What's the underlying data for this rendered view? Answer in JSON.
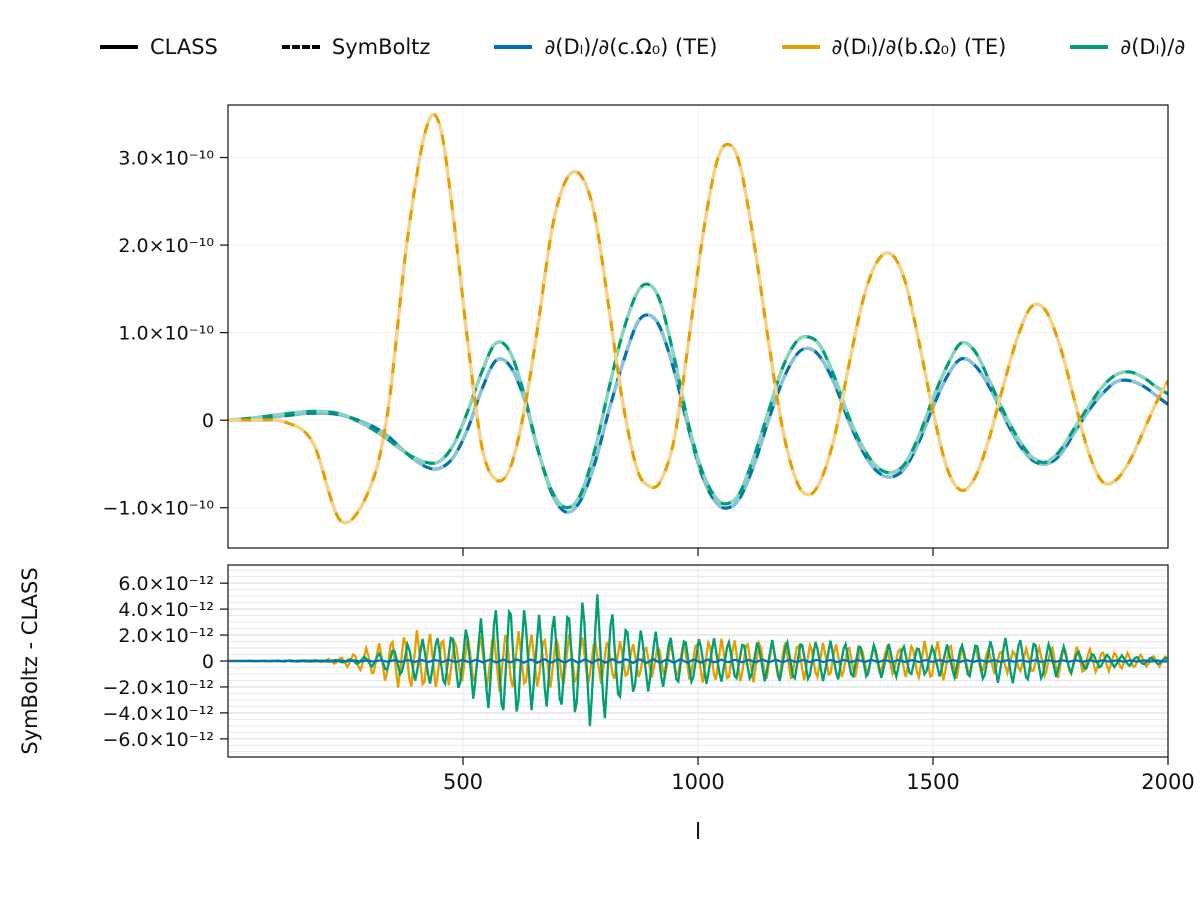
{
  "legend": {
    "items": [
      {
        "label": "CLASS",
        "color": "#000000",
        "style": "solid"
      },
      {
        "label": "SymBoltz",
        "color": "#000000",
        "style": "dashed"
      },
      {
        "label": "∂(Dₗ)/∂(c.Ω₀) (TE)",
        "color": "#0072B2",
        "style": "solid"
      },
      {
        "label": "∂(Dₗ)/∂(b.Ω₀) (TE)",
        "color": "#E69F00",
        "style": "solid"
      },
      {
        "label": "∂(Dₗ)/∂",
        "color": "#009E73",
        "style": "solid"
      }
    ]
  },
  "axes": {
    "top": {
      "yticks": [
        {
          "v": 3,
          "label": "3.0×10⁻¹⁰"
        },
        {
          "v": 2,
          "label": "2.0×10⁻¹⁰"
        },
        {
          "v": 1,
          "label": "1.0×10⁻¹⁰"
        },
        {
          "v": 0,
          "label": "0"
        },
        {
          "v": -1,
          "label": "−1.0×10⁻¹⁰"
        }
      ],
      "xticks_unlabeled": [
        500,
        1000,
        1500
      ]
    },
    "bottom": {
      "ylabel": "SymBoltz - CLASS",
      "xlabel": "l",
      "yticks": [
        {
          "v": 6,
          "label": "6.0×10⁻¹²"
        },
        {
          "v": 4,
          "label": "4.0×10⁻¹²"
        },
        {
          "v": 2,
          "label": "2.0×10⁻¹²"
        },
        {
          "v": 0,
          "label": "0"
        },
        {
          "v": -2,
          "label": "−2.0×10⁻¹²"
        },
        {
          "v": -4,
          "label": "−4.0×10⁻¹²"
        },
        {
          "v": -6,
          "label": "−6.0×10⁻¹²"
        }
      ],
      "xticks": [
        {
          "v": 500,
          "label": "500"
        },
        {
          "v": 1000,
          "label": "1000"
        },
        {
          "v": 1500,
          "label": "1500"
        },
        {
          "v": 2000,
          "label": "2000"
        }
      ]
    }
  },
  "chart_data": [
    {
      "type": "line",
      "panel": "top",
      "title": "",
      "xlabel": "",
      "ylabel": "",
      "xlim": [
        0,
        2000
      ],
      "y_unit": 1e-10,
      "ylim_scaled": [
        -1.46,
        3.6
      ],
      "overlay_styles": {
        "solid": "CLASS",
        "dashed": "SymBoltz"
      },
      "x": [
        2,
        60,
        120,
        180,
        240,
        300,
        340,
        380,
        420,
        450,
        480,
        510,
        540,
        570,
        600,
        630,
        660,
        690,
        720,
        750,
        780,
        810,
        840,
        870,
        895,
        920,
        950,
        980,
        1010,
        1040,
        1065,
        1090,
        1120,
        1150,
        1180,
        1210,
        1235,
        1260,
        1290,
        1320,
        1350,
        1380,
        1410,
        1440,
        1470,
        1500,
        1530,
        1560,
        1590,
        1620,
        1650,
        1680,
        1710,
        1740,
        1770,
        1800,
        1830,
        1860,
        1890,
        1920,
        1950,
        1975,
        2000
      ],
      "series": [
        {
          "name": "∂(Dₗ)/∂(c.Ω₀) (TE)",
          "color": "#0072B2",
          "values": [
            0,
            0.02,
            0.05,
            0.08,
            0.06,
            -0.05,
            -0.18,
            -0.38,
            -0.53,
            -0.55,
            -0.42,
            -0.1,
            0.35,
            0.68,
            0.62,
            0.25,
            -0.35,
            -0.85,
            -1.05,
            -0.92,
            -0.5,
            0.1,
            0.65,
            1.1,
            1.2,
            1.05,
            0.55,
            -0.1,
            -0.65,
            -0.95,
            -1.0,
            -0.88,
            -0.5,
            0.0,
            0.45,
            0.75,
            0.82,
            0.72,
            0.42,
            0.0,
            -0.35,
            -0.58,
            -0.65,
            -0.55,
            -0.25,
            0.15,
            0.5,
            0.7,
            0.62,
            0.38,
            0.05,
            -0.25,
            -0.45,
            -0.5,
            -0.4,
            -0.15,
            0.1,
            0.3,
            0.44,
            0.45,
            0.38,
            0.28,
            0.18
          ]
        },
        {
          "name": "∂(Dₗ)/∂(b.Ω₀) (TE)",
          "color": "#E69F00",
          "values": [
            0,
            0,
            -0.02,
            -0.25,
            -1.15,
            -0.8,
            0.1,
            2.0,
            3.3,
            3.38,
            2.3,
            0.9,
            -0.3,
            -0.68,
            -0.55,
            0.1,
            1.1,
            2.2,
            2.75,
            2.8,
            2.35,
            1.3,
            0.2,
            -0.55,
            -0.75,
            -0.7,
            -0.2,
            0.9,
            2.1,
            2.95,
            3.15,
            2.9,
            2.0,
            0.9,
            -0.1,
            -0.7,
            -0.85,
            -0.7,
            -0.2,
            0.6,
            1.35,
            1.8,
            1.9,
            1.6,
            0.9,
            0.1,
            -0.55,
            -0.8,
            -0.65,
            -0.2,
            0.4,
            0.95,
            1.3,
            1.25,
            0.85,
            0.25,
            -0.35,
            -0.7,
            -0.68,
            -0.45,
            -0.1,
            0.2,
            0.45
          ]
        },
        {
          "name": "∂(Dₗ)/∂",
          "color": "#009E73",
          "values": [
            0,
            0.03,
            0.07,
            0.1,
            0.07,
            -0.08,
            -0.22,
            -0.38,
            -0.48,
            -0.47,
            -0.28,
            0.1,
            0.55,
            0.88,
            0.78,
            0.3,
            -0.35,
            -0.82,
            -1.0,
            -0.85,
            -0.35,
            0.35,
            1.0,
            1.45,
            1.55,
            1.35,
            0.7,
            -0.05,
            -0.6,
            -0.9,
            -0.95,
            -0.82,
            -0.4,
            0.1,
            0.6,
            0.9,
            0.95,
            0.85,
            0.5,
            0.05,
            -0.3,
            -0.53,
            -0.6,
            -0.5,
            -0.18,
            0.25,
            0.62,
            0.88,
            0.78,
            0.45,
            0.1,
            -0.2,
            -0.42,
            -0.48,
            -0.35,
            -0.1,
            0.15,
            0.38,
            0.52,
            0.55,
            0.48,
            0.38,
            0.3
          ]
        }
      ]
    },
    {
      "type": "line",
      "panel": "bottom",
      "title": "",
      "xlabel": "l",
      "ylabel": "SymBoltz - CLASS",
      "xlim": [
        0,
        2000
      ],
      "y_unit": 1e-12,
      "ylim_scaled": [
        -7.4,
        7.4
      ],
      "note": "high-frequency oscillatory residuals; stored as amplitude envelope [l, amplitude] with triangle-wave period in l",
      "series": [
        {
          "name": "∂(Dₗ)/∂(b.Ω₀) (TE) residual",
          "color": "#E69F00",
          "period": 27,
          "phase": 0.6,
          "envelope": [
            [
              2,
              0
            ],
            [
              200,
              0.1
            ],
            [
              240,
              0.3
            ],
            [
              280,
              0.8
            ],
            [
              320,
              1.5
            ],
            [
              360,
              2.1
            ],
            [
              400,
              2.5
            ],
            [
              440,
              2.3
            ],
            [
              480,
              1.8
            ],
            [
              520,
              2.0
            ],
            [
              560,
              2.4
            ],
            [
              600,
              2.5
            ],
            [
              640,
              2.3
            ],
            [
              680,
              2.1
            ],
            [
              720,
              2.2
            ],
            [
              760,
              2.0
            ],
            [
              800,
              1.8
            ],
            [
              850,
              1.5
            ],
            [
              900,
              1.3
            ],
            [
              950,
              1.5
            ],
            [
              1000,
              1.7
            ],
            [
              1060,
              1.8
            ],
            [
              1120,
              1.7
            ],
            [
              1180,
              1.6
            ],
            [
              1240,
              1.5
            ],
            [
              1300,
              1.4
            ],
            [
              1360,
              1.2
            ],
            [
              1420,
              1.1
            ],
            [
              1480,
              1.6
            ],
            [
              1520,
              1.7
            ],
            [
              1560,
              1.3
            ],
            [
              1620,
              1.0
            ],
            [
              1680,
              0.9
            ],
            [
              1720,
              1.1
            ],
            [
              1760,
              1.4
            ],
            [
              1800,
              1.2
            ],
            [
              1850,
              0.9
            ],
            [
              1900,
              0.7
            ],
            [
              1950,
              0.5
            ],
            [
              2000,
              0.4
            ]
          ]
        },
        {
          "name": "∂(Dₗ)/∂ residual",
          "color": "#009E73",
          "period": 31,
          "phase": 0.15,
          "envelope": [
            [
              2,
              0
            ],
            [
              200,
              0.05
            ],
            [
              260,
              0.15
            ],
            [
              300,
              0.4
            ],
            [
              340,
              0.9
            ],
            [
              380,
              1.4
            ],
            [
              420,
              1.8
            ],
            [
              460,
              2.2
            ],
            [
              500,
              2.6
            ],
            [
              540,
              3.4
            ],
            [
              570,
              4.6
            ],
            [
              600,
              5.0
            ],
            [
              630,
              4.4
            ],
            [
              660,
              3.6
            ],
            [
              690,
              4.0
            ],
            [
              720,
              4.4
            ],
            [
              750,
              5.0
            ],
            [
              780,
              5.4
            ],
            [
              810,
              4.6
            ],
            [
              840,
              3.2
            ],
            [
              880,
              2.6
            ],
            [
              920,
              2.2
            ],
            [
              960,
              2.0
            ],
            [
              1000,
              1.9
            ],
            [
              1060,
              1.7
            ],
            [
              1120,
              1.6
            ],
            [
              1200,
              1.7
            ],
            [
              1280,
              1.6
            ],
            [
              1360,
              1.4
            ],
            [
              1440,
              1.3
            ],
            [
              1500,
              1.2
            ],
            [
              1560,
              1.4
            ],
            [
              1620,
              1.7
            ],
            [
              1680,
              1.9
            ],
            [
              1720,
              1.7
            ],
            [
              1760,
              1.3
            ],
            [
              1800,
              0.9
            ],
            [
              1850,
              0.6
            ],
            [
              1900,
              0.45
            ],
            [
              1950,
              0.3
            ],
            [
              2000,
              0.25
            ]
          ]
        },
        {
          "name": "∂(Dₗ)/∂(c.Ω₀) (TE) residual",
          "color": "#0072B2",
          "period": 29,
          "phase": 0.3,
          "envelope": [
            [
              2,
              0
            ],
            [
              300,
              0.05
            ],
            [
              500,
              0.1
            ],
            [
              700,
              0.15
            ],
            [
              900,
              0.15
            ],
            [
              1100,
              0.1
            ],
            [
              1400,
              0.08
            ],
            [
              1700,
              0.06
            ],
            [
              2000,
              0.05
            ]
          ]
        }
      ]
    }
  ]
}
